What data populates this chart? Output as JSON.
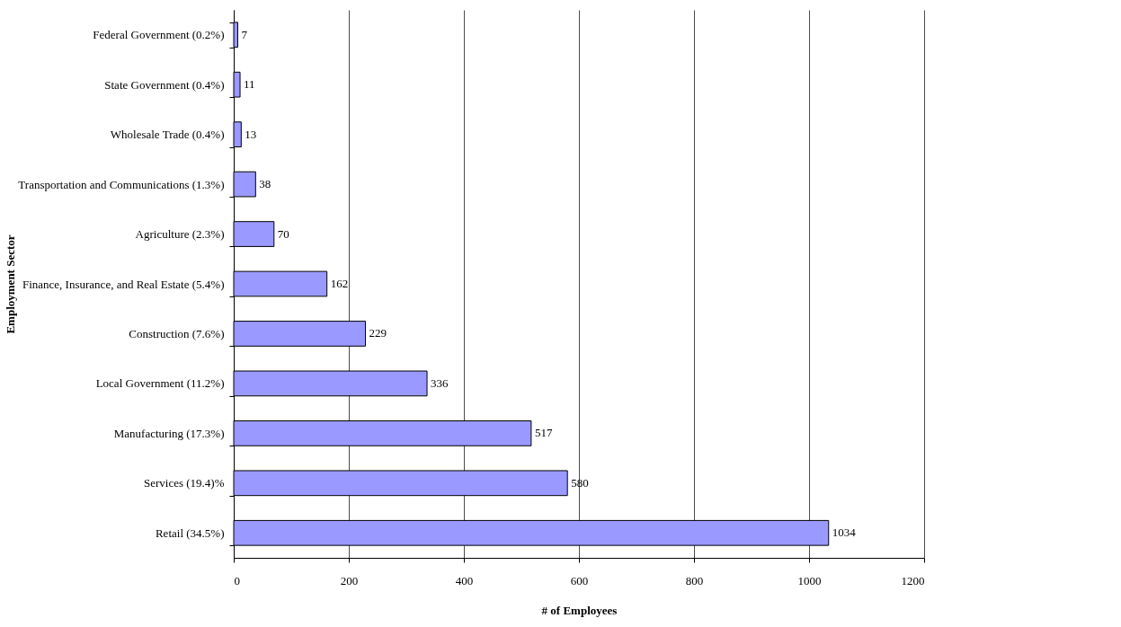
{
  "chart_data": {
    "type": "bar",
    "orientation": "horizontal",
    "xlabel": "# of Employees",
    "ylabel": "Employment Sector",
    "categories": [
      "Federal Government (0.2%)",
      "State Government (0.4%)",
      "Wholesale Trade (0.4%)",
      "Transportation and Communications (1.3%)",
      "Agriculture (2.3%)",
      "Finance, Insurance, and Real Estate (5.4%)",
      "Construction (7.6%)",
      "Local Government (11.2%)",
      "Manufacturing (17.3%)",
      "Services (19.4)%",
      "Retail (34.5%)"
    ],
    "values": [
      7,
      11,
      13,
      38,
      70,
      162,
      229,
      336,
      517,
      580,
      1034
    ],
    "color": "#9999ff",
    "xlim": [
      0,
      1200
    ],
    "xticks": [
      0,
      200,
      400,
      600,
      800,
      1000,
      1200
    ],
    "grid": "x",
    "data_labels": true
  }
}
